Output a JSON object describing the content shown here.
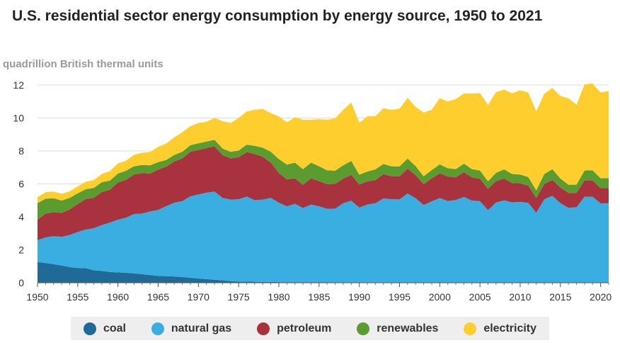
{
  "title": "U.S. residential sector energy consumption by energy source, 1950 to 2021",
  "units_label": "quadrillion British thermal units",
  "chart_data": {
    "type": "area",
    "stacked": true,
    "title": "U.S. residential sector energy consumption by energy source, 1950 to 2021",
    "ylabel": "quadrillion British thermal units",
    "xlabel": "",
    "xlim": [
      1950,
      2021
    ],
    "ylim": [
      0,
      12
    ],
    "x_ticks": [
      1950,
      1955,
      1960,
      1965,
      1970,
      1975,
      1980,
      1985,
      1990,
      1995,
      2000,
      2005,
      2010,
      2015,
      2020
    ],
    "y_ticks": [
      0,
      2,
      4,
      6,
      8,
      10,
      12
    ],
    "grid": "horizontal",
    "legend_position": "bottom",
    "x": [
      1950,
      1951,
      1952,
      1953,
      1954,
      1955,
      1956,
      1957,
      1958,
      1959,
      1960,
      1961,
      1962,
      1963,
      1964,
      1965,
      1966,
      1967,
      1968,
      1969,
      1970,
      1971,
      1972,
      1973,
      1974,
      1975,
      1976,
      1977,
      1978,
      1979,
      1980,
      1981,
      1982,
      1983,
      1984,
      1985,
      1986,
      1987,
      1988,
      1989,
      1990,
      1991,
      1992,
      1993,
      1994,
      1995,
      1996,
      1997,
      1998,
      1999,
      2000,
      2001,
      2002,
      2003,
      2004,
      2005,
      2006,
      2007,
      2008,
      2009,
      2010,
      2011,
      2012,
      2013,
      2014,
      2015,
      2016,
      2017,
      2018,
      2019,
      2020,
      2021
    ],
    "series": [
      {
        "name": "coal",
        "color": "#1f6a96",
        "values": [
          1.26,
          1.2,
          1.13,
          1.05,
          0.95,
          0.9,
          0.88,
          0.76,
          0.72,
          0.65,
          0.63,
          0.6,
          0.57,
          0.52,
          0.47,
          0.42,
          0.4,
          0.38,
          0.35,
          0.3,
          0.26,
          0.22,
          0.18,
          0.15,
          0.1,
          0.07,
          0.07,
          0.06,
          0.05,
          0.05,
          0.04,
          0.04,
          0.04,
          0.04,
          0.04,
          0.04,
          0.04,
          0.03,
          0.03,
          0.03,
          0.03,
          0.03,
          0.03,
          0.02,
          0.02,
          0.02,
          0.02,
          0.02,
          0.02,
          0.01,
          0.01,
          0.01,
          0.01,
          0.01,
          0.01,
          0.01,
          0.01,
          0.01,
          0.01,
          0,
          0,
          0,
          0,
          0,
          0,
          0,
          0,
          0,
          0,
          0,
          0,
          0
        ]
      },
      {
        "name": "natural gas",
        "color": "#3aaee0",
        "values": [
          1.32,
          1.55,
          1.7,
          1.74,
          1.95,
          2.18,
          2.35,
          2.55,
          2.78,
          3.0,
          3.2,
          3.35,
          3.6,
          3.68,
          3.86,
          4.0,
          4.25,
          4.48,
          4.6,
          4.95,
          5.1,
          5.25,
          5.35,
          5.0,
          4.95,
          5.0,
          5.16,
          4.95,
          5.0,
          5.1,
          4.82,
          4.6,
          4.75,
          4.5,
          4.7,
          4.6,
          4.45,
          4.47,
          4.8,
          4.95,
          4.53,
          4.72,
          4.8,
          5.1,
          5.05,
          5.04,
          5.4,
          5.11,
          4.7,
          4.93,
          5.13,
          4.95,
          5.01,
          5.2,
          4.98,
          4.94,
          4.4,
          4.86,
          4.99,
          4.88,
          4.91,
          4.85,
          4.25,
          5.07,
          5.28,
          4.83,
          4.55,
          4.58,
          5.22,
          5.22,
          4.82,
          4.83
        ]
      },
      {
        "name": "petroleum",
        "color": "#a8333e",
        "values": [
          1.25,
          1.45,
          1.45,
          1.45,
          1.55,
          1.7,
          1.85,
          1.85,
          2.0,
          2.0,
          2.25,
          2.3,
          2.4,
          2.45,
          2.3,
          2.45,
          2.4,
          2.5,
          2.6,
          2.7,
          2.7,
          2.7,
          2.75,
          2.6,
          2.5,
          2.55,
          2.7,
          2.8,
          2.6,
          2.15,
          1.8,
          1.63,
          1.55,
          1.4,
          1.6,
          1.53,
          1.49,
          1.5,
          1.5,
          1.57,
          1.4,
          1.4,
          1.4,
          1.47,
          1.4,
          1.4,
          1.5,
          1.4,
          1.26,
          1.4,
          1.5,
          1.49,
          1.38,
          1.5,
          1.4,
          1.36,
          1.29,
          1.3,
          1.32,
          1.17,
          1.13,
          1.05,
          0.89,
          0.93,
          0.96,
          0.95,
          0.9,
          0.87,
          0.99,
          0.99,
          0.92,
          0.92
        ]
      },
      {
        "name": "renewables",
        "color": "#5b9c31",
        "values": [
          1.0,
          0.9,
          0.85,
          0.75,
          0.7,
          0.65,
          0.6,
          0.6,
          0.6,
          0.55,
          0.55,
          0.55,
          0.5,
          0.5,
          0.5,
          0.45,
          0.4,
          0.4,
          0.4,
          0.4,
          0.4,
          0.4,
          0.4,
          0.4,
          0.4,
          0.4,
          0.45,
          0.5,
          0.55,
          0.65,
          0.85,
          0.9,
          0.95,
          0.95,
          0.95,
          0.9,
          0.85,
          0.8,
          0.8,
          0.85,
          0.6,
          0.6,
          0.65,
          0.62,
          0.6,
          0.6,
          0.62,
          0.55,
          0.48,
          0.5,
          0.55,
          0.5,
          0.5,
          0.52,
          0.51,
          0.5,
          0.46,
          0.5,
          0.56,
          0.55,
          0.53,
          0.52,
          0.47,
          0.6,
          0.65,
          0.55,
          0.5,
          0.5,
          0.6,
          0.62,
          0.6,
          0.6
        ]
      },
      {
        "name": "electricity",
        "color": "#fece2f",
        "values": [
          0.37,
          0.4,
          0.4,
          0.41,
          0.4,
          0.42,
          0.45,
          0.47,
          0.5,
          0.58,
          0.62,
          0.6,
          0.7,
          0.74,
          0.81,
          0.92,
          1.0,
          1.06,
          1.19,
          1.15,
          1.24,
          1.2,
          1.32,
          1.65,
          1.75,
          1.98,
          2.02,
          2.19,
          2.35,
          2.35,
          2.58,
          2.57,
          2.75,
          3.01,
          2.6,
          2.86,
          3.07,
          3.18,
          3.37,
          3.54,
          3.14,
          3.35,
          3.23,
          3.38,
          3.42,
          3.5,
          3.68,
          3.6,
          3.86,
          3.66,
          4.01,
          4.05,
          4.25,
          4.26,
          4.59,
          4.7,
          4.62,
          4.9,
          4.84,
          4.89,
          5.12,
          5.13,
          4.79,
          4.88,
          4.93,
          5.0,
          5.25,
          4.85,
          5.23,
          5.26,
          5.21,
          5.29
        ]
      }
    ]
  }
}
